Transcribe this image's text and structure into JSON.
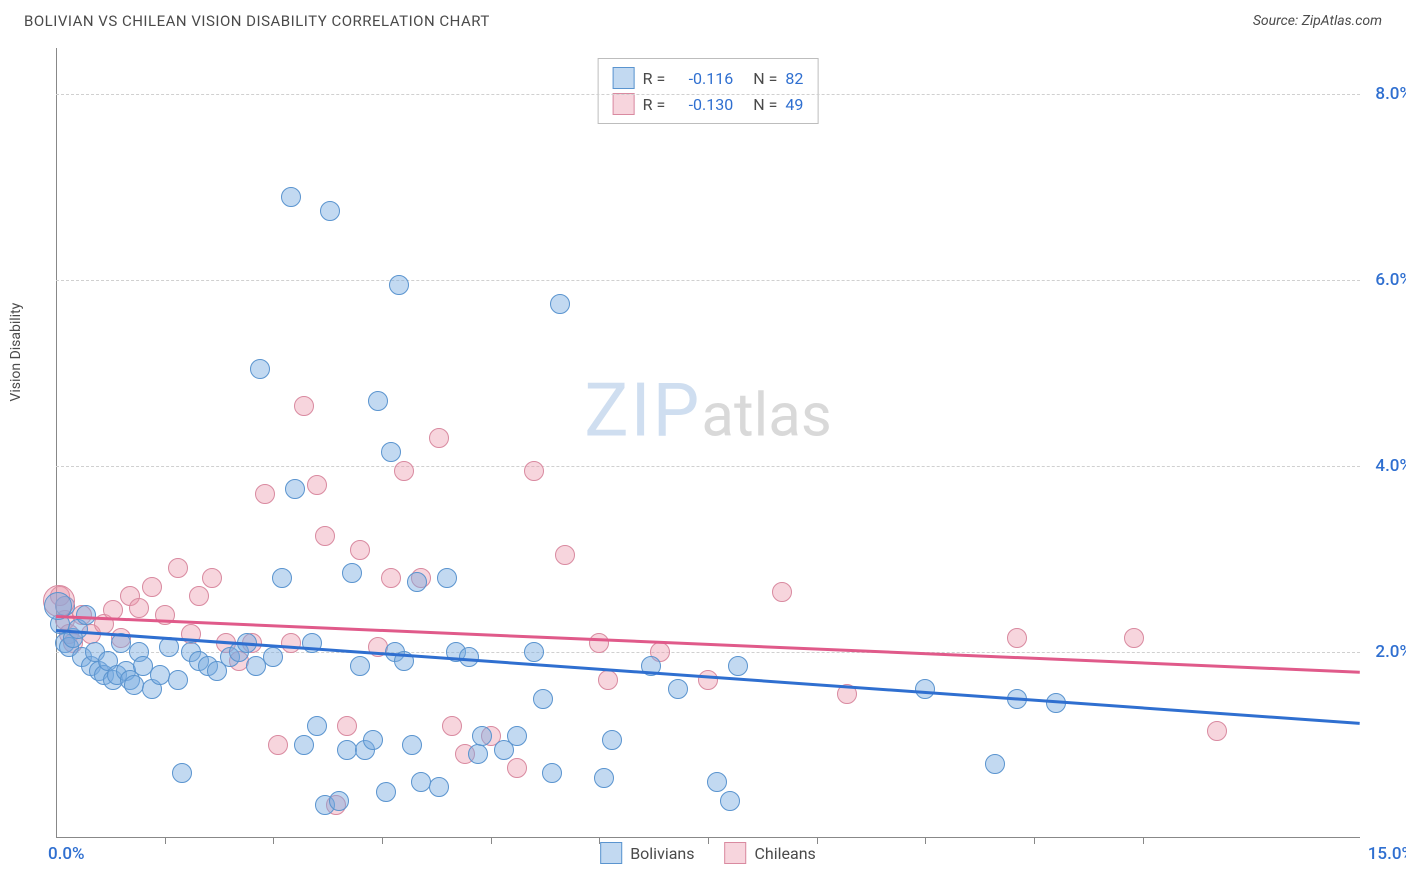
{
  "header": {
    "title": "BOLIVIAN VS CHILEAN VISION DISABILITY CORRELATION CHART",
    "source_prefix": "Source: ",
    "source_name": "ZipAtlas.com"
  },
  "chart": {
    "type": "scatter",
    "y_axis_label": "Vision Disability",
    "title_color": "#4a4a4a",
    "title_fontsize": 15,
    "source_color": "#4a4a4a",
    "source_fontsize": 14,
    "label_color": "#4a4a4a",
    "label_fontsize": 14,
    "tick_color": "#2f6fd0",
    "tick_fontsize": 17,
    "background_color": "#ffffff",
    "grid_color": "#d0d0d0",
    "xlim": [
      0,
      15
    ],
    "ylim": [
      0,
      8.5
    ],
    "y_ticks": [
      2.0,
      4.0,
      6.0,
      8.0
    ],
    "y_tick_labels": [
      "2.0%",
      "4.0%",
      "6.0%",
      "8.0%"
    ],
    "x_tick_left": "0.0%",
    "x_tick_right": "15.0%",
    "x_minor_ticks": [
      1.25,
      2.5,
      3.75,
      5.0,
      6.25,
      7.5,
      8.75,
      10.0,
      11.25,
      12.5
    ],
    "watermark_zip": "ZIP",
    "watermark_atlas": "atlas"
  },
  "series": {
    "bolivians": {
      "label": "Bolivians",
      "fill_color": "rgba(120,170,225,0.45)",
      "stroke_color": "#5a94cf",
      "trend_color": "#2f6fd0",
      "marker_radius": 10,
      "trend": {
        "y_start": 2.25,
        "y_end": 1.25
      },
      "points": [
        [
          0.05,
          2.3
        ],
        [
          0.1,
          2.5
        ],
        [
          0.1,
          2.1
        ],
        [
          0.15,
          2.05
        ],
        [
          0.2,
          2.15
        ],
        [
          0.25,
          2.25
        ],
        [
          0.3,
          1.95
        ],
        [
          0.35,
          2.4
        ],
        [
          0.4,
          1.85
        ],
        [
          0.45,
          2.0
        ],
        [
          0.5,
          1.8
        ],
        [
          0.55,
          1.75
        ],
        [
          0.6,
          1.9
        ],
        [
          0.65,
          1.7
        ],
        [
          0.7,
          1.75
        ],
        [
          0.75,
          2.1
        ],
        [
          0.8,
          1.8
        ],
        [
          0.85,
          1.7
        ],
        [
          0.9,
          1.65
        ],
        [
          0.95,
          2.0
        ],
        [
          1.0,
          1.85
        ],
        [
          1.1,
          1.6
        ],
        [
          1.2,
          1.75
        ],
        [
          1.3,
          2.05
        ],
        [
          1.4,
          1.7
        ],
        [
          1.45,
          0.7
        ],
        [
          1.55,
          2.0
        ],
        [
          1.65,
          1.9
        ],
        [
          1.75,
          1.85
        ],
        [
          1.85,
          1.8
        ],
        [
          2.0,
          1.95
        ],
        [
          2.1,
          2.0
        ],
        [
          2.2,
          2.1
        ],
        [
          2.3,
          1.85
        ],
        [
          2.35,
          5.05
        ],
        [
          2.5,
          1.95
        ],
        [
          2.6,
          2.8
        ],
        [
          2.7,
          6.9
        ],
        [
          2.75,
          3.75
        ],
        [
          2.85,
          1.0
        ],
        [
          2.95,
          2.1
        ],
        [
          3.0,
          1.2
        ],
        [
          3.1,
          0.35
        ],
        [
          3.15,
          6.75
        ],
        [
          3.25,
          0.4
        ],
        [
          3.35,
          0.95
        ],
        [
          3.4,
          2.85
        ],
        [
          3.5,
          1.85
        ],
        [
          3.55,
          0.95
        ],
        [
          3.65,
          1.05
        ],
        [
          3.7,
          4.7
        ],
        [
          3.8,
          0.5
        ],
        [
          3.85,
          4.15
        ],
        [
          3.9,
          2.0
        ],
        [
          3.95,
          5.95
        ],
        [
          4.0,
          1.9
        ],
        [
          4.1,
          1.0
        ],
        [
          4.15,
          2.75
        ],
        [
          4.2,
          0.6
        ],
        [
          4.4,
          0.55
        ],
        [
          4.5,
          2.8
        ],
        [
          4.6,
          2.0
        ],
        [
          4.75,
          1.95
        ],
        [
          4.85,
          0.9
        ],
        [
          4.9,
          1.1
        ],
        [
          5.15,
          0.95
        ],
        [
          5.3,
          1.1
        ],
        [
          5.5,
          2.0
        ],
        [
          5.6,
          1.5
        ],
        [
          5.7,
          0.7
        ],
        [
          5.8,
          5.75
        ],
        [
          6.3,
          0.65
        ],
        [
          6.4,
          1.05
        ],
        [
          6.85,
          1.85
        ],
        [
          7.15,
          1.6
        ],
        [
          7.6,
          0.6
        ],
        [
          7.75,
          0.4
        ],
        [
          7.85,
          1.85
        ],
        [
          10.0,
          1.6
        ],
        [
          10.8,
          0.8
        ],
        [
          11.05,
          1.5
        ],
        [
          11.5,
          1.45
        ]
      ]
    },
    "chileans": {
      "label": "Chileans",
      "fill_color": "rgba(235,150,170,0.40)",
      "stroke_color": "#d98aa0",
      "trend_color": "#e05a8a",
      "marker_radius": 10,
      "trend": {
        "y_start": 2.4,
        "y_end": 1.8
      },
      "points": [
        [
          0.05,
          2.6
        ],
        [
          0.1,
          2.35
        ],
        [
          0.15,
          2.2
        ],
        [
          0.2,
          2.1
        ],
        [
          0.3,
          2.4
        ],
        [
          0.4,
          2.2
        ],
        [
          0.55,
          2.3
        ],
        [
          0.65,
          2.45
        ],
        [
          0.75,
          2.15
        ],
        [
          0.85,
          2.6
        ],
        [
          0.95,
          2.48
        ],
        [
          1.1,
          2.7
        ],
        [
          1.25,
          2.4
        ],
        [
          1.4,
          2.9
        ],
        [
          1.55,
          2.2
        ],
        [
          1.65,
          2.6
        ],
        [
          1.8,
          2.8
        ],
        [
          1.95,
          2.1
        ],
        [
          2.1,
          1.9
        ],
        [
          2.25,
          2.1
        ],
        [
          2.4,
          3.7
        ],
        [
          2.55,
          1.0
        ],
        [
          2.7,
          2.1
        ],
        [
          2.85,
          4.65
        ],
        [
          3.0,
          3.8
        ],
        [
          3.1,
          3.25
        ],
        [
          3.22,
          0.35
        ],
        [
          3.35,
          1.2
        ],
        [
          3.5,
          3.1
        ],
        [
          3.7,
          2.05
        ],
        [
          3.85,
          2.8
        ],
        [
          4.0,
          3.95
        ],
        [
          4.2,
          2.8
        ],
        [
          4.4,
          4.3
        ],
        [
          4.55,
          1.2
        ],
        [
          4.7,
          0.9
        ],
        [
          5.0,
          1.1
        ],
        [
          5.3,
          0.75
        ],
        [
          5.5,
          3.95
        ],
        [
          5.85,
          3.05
        ],
        [
          6.25,
          2.1
        ],
        [
          6.35,
          1.7
        ],
        [
          6.95,
          2.0
        ],
        [
          7.5,
          1.7
        ],
        [
          8.35,
          2.65
        ],
        [
          9.1,
          1.55
        ],
        [
          11.05,
          2.15
        ],
        [
          12.4,
          2.15
        ],
        [
          13.35,
          1.15
        ]
      ]
    }
  },
  "stats": {
    "rows": [
      {
        "swatch": "bolivians",
        "r_label": "R =",
        "r_value": "-0.116",
        "n_label": "N =",
        "n_value": "82"
      },
      {
        "swatch": "chileans",
        "r_label": "R =",
        "r_value": "-0.130",
        "n_label": "N =",
        "n_value": "49"
      }
    ],
    "label_color": "#4a4a4a",
    "value_color": "#2f6fd0"
  },
  "legend": {
    "label_color": "#4a4a4a",
    "label_fontsize": 16
  }
}
